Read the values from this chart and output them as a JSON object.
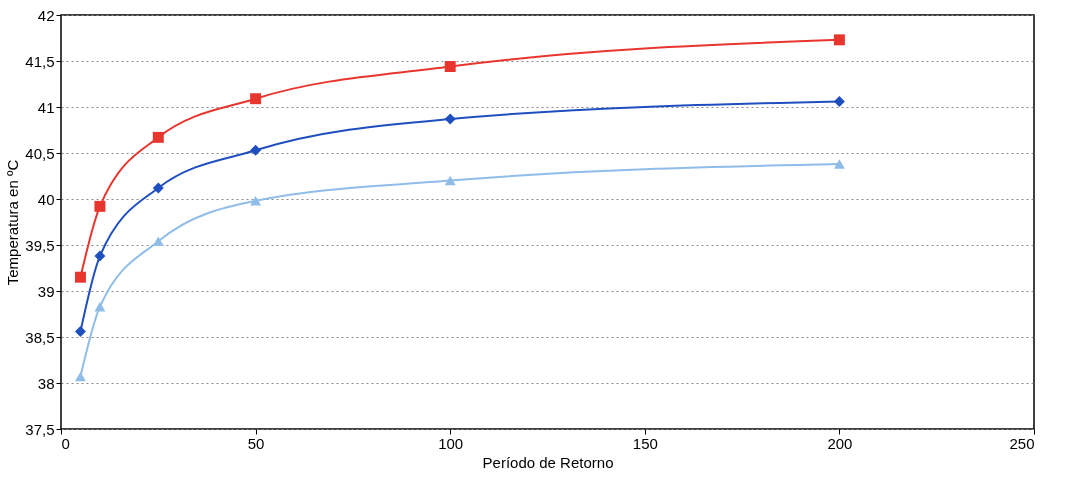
{
  "chart_data": {
    "type": "line",
    "xlabel": "Período de Retorno",
    "ylabel": "Temperatura en ºC",
    "x": [
      5,
      10,
      25,
      50,
      100,
      200
    ],
    "series": [
      {
        "color": "#e8352e",
        "marker": "square",
        "values": [
          39.15,
          39.92,
          40.67,
          41.09,
          41.44,
          41.73
        ]
      },
      {
        "color": "#1f4fbf",
        "marker": "diamond",
        "values": [
          38.56,
          39.38,
          40.12,
          40.53,
          40.87,
          41.06
        ]
      },
      {
        "color": "#8fbde8",
        "marker": "triangle",
        "values": [
          38.07,
          38.83,
          39.54,
          39.98,
          40.2,
          40.38
        ]
      }
    ],
    "xlim": [
      0,
      250
    ],
    "xticks": [
      0,
      50,
      100,
      150,
      200,
      250
    ],
    "ylim": [
      37.5,
      42
    ],
    "yticks": [
      {
        "value": 37.5,
        "label": "37,5"
      },
      38,
      {
        "value": 38.5,
        "label": "38,5"
      },
      39,
      {
        "value": 39.5,
        "label": "39,5"
      },
      40,
      {
        "value": 40.5,
        "label": "40,5"
      },
      41,
      {
        "value": 41.5,
        "label": "41,5"
      },
      42
    ],
    "grid": "y",
    "line_style": "solid"
  }
}
